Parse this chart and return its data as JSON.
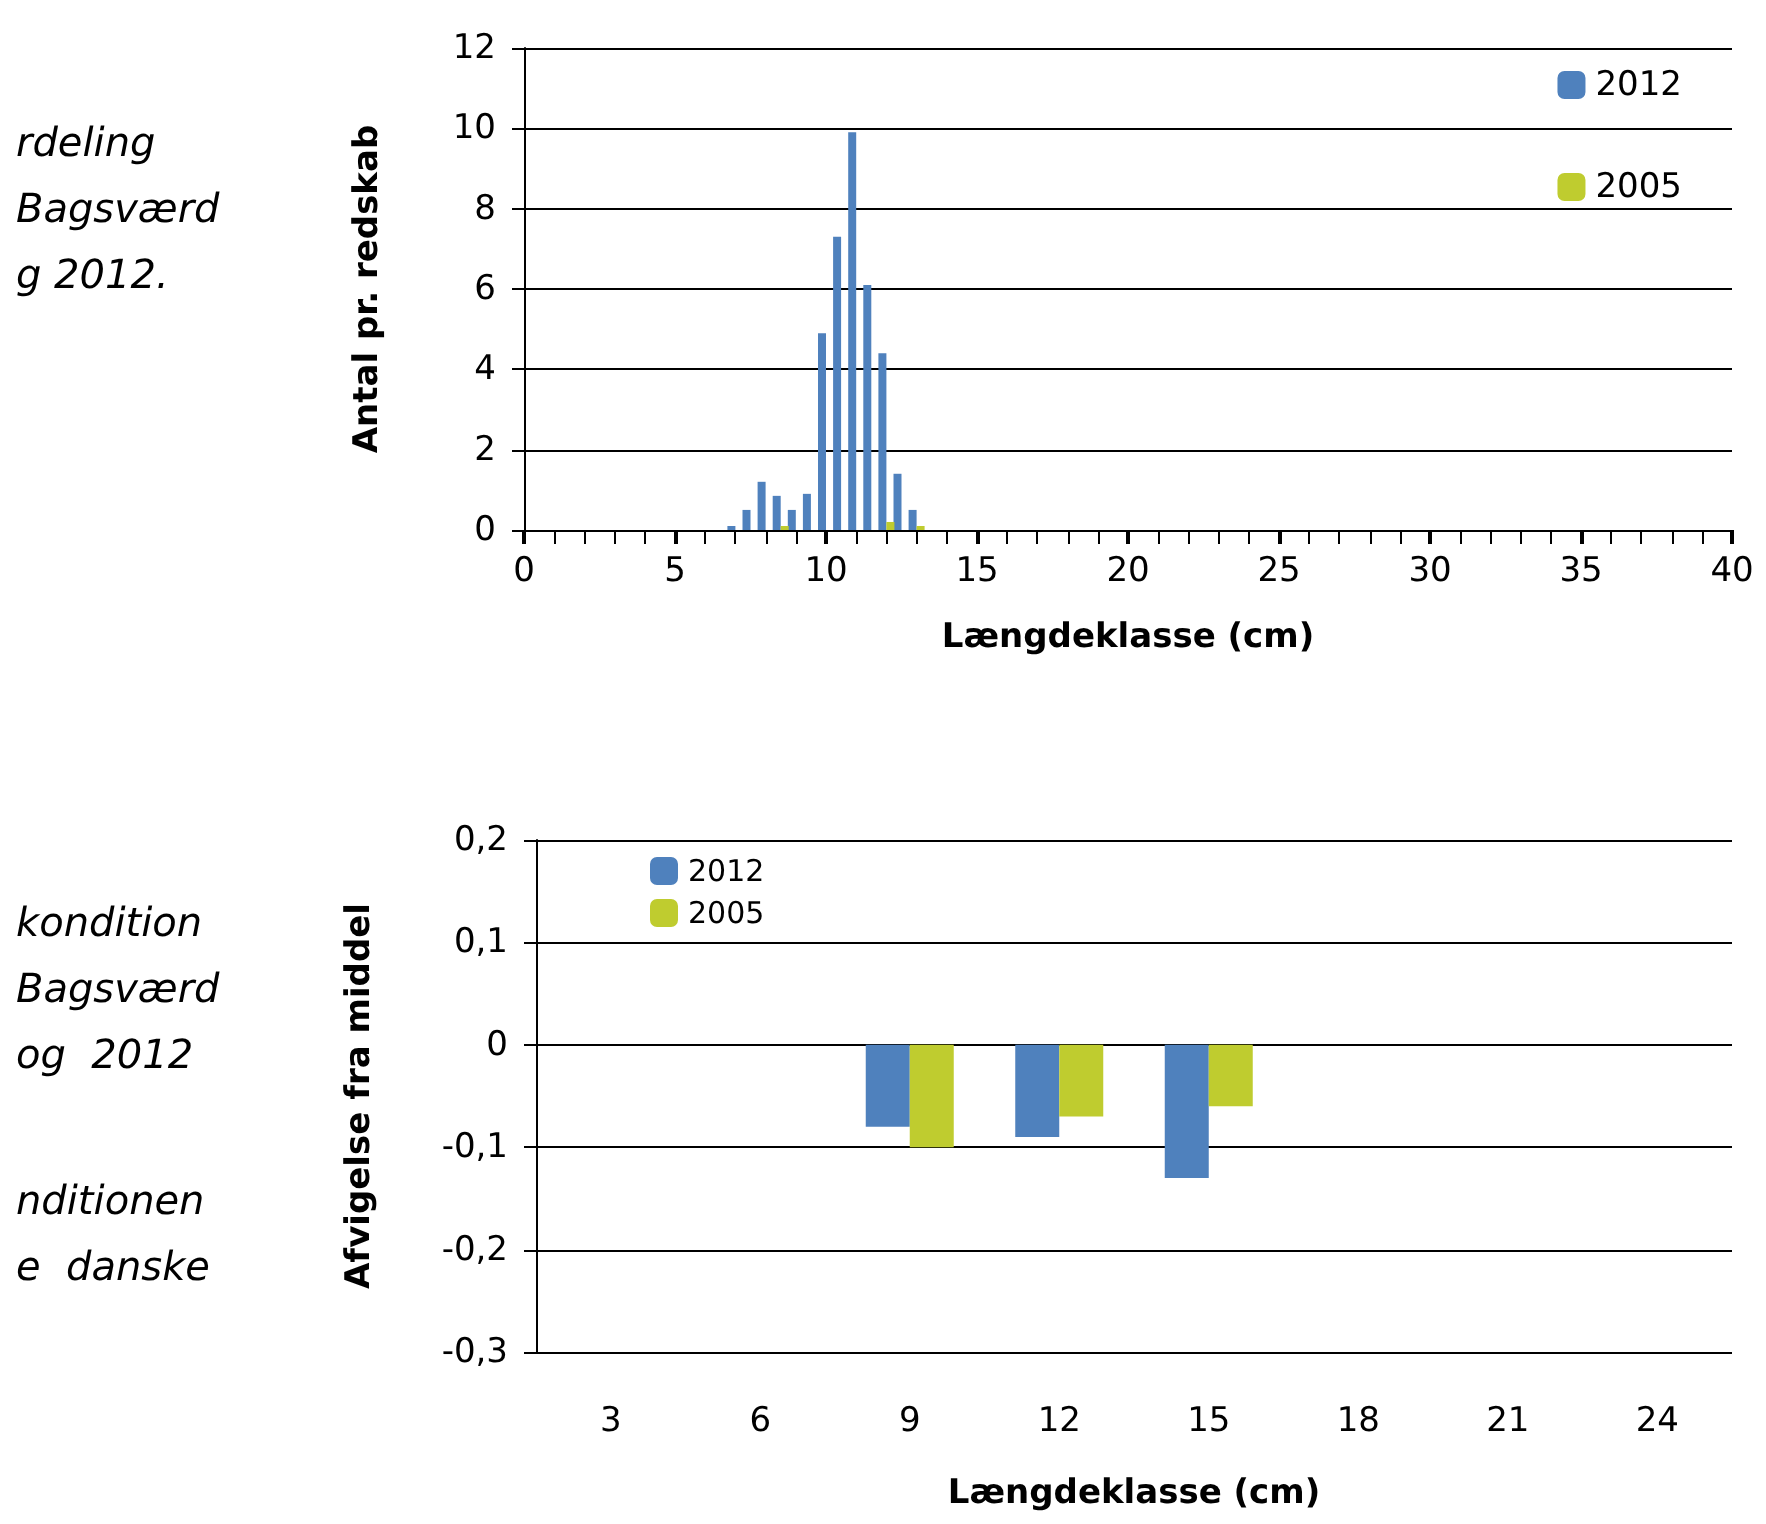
{
  "chart_data": [
    {
      "type": "bar",
      "xlabel": "Længdeklasse (cm)",
      "ylabel": "Antal pr. redskab",
      "x": [
        7,
        7.5,
        8,
        8.5,
        9,
        9.5,
        10,
        10.5,
        11,
        11.5,
        12,
        12.5,
        13
      ],
      "series": [
        {
          "name": "2012",
          "color": "#4f81bd",
          "values": [
            0.1,
            0.5,
            1.2,
            0.85,
            0.5,
            0.9,
            4.9,
            7.3,
            9.9,
            6.1,
            4.4,
            1.4,
            0.5
          ]
        },
        {
          "name": "2005",
          "color": "#bfcc2f",
          "values": [
            null,
            null,
            null,
            0.1,
            null,
            null,
            null,
            null,
            null,
            null,
            0.2,
            null,
            0.1
          ]
        }
      ],
      "xlim": [
        0,
        40
      ],
      "xticks": [
        0,
        5,
        10,
        15,
        20,
        25,
        30,
        35,
        40
      ],
      "ylim": [
        0,
        12
      ],
      "yticks": [
        0,
        2,
        4,
        6,
        8,
        10,
        12
      ],
      "grid": "y",
      "legend": "top right",
      "annotations": [
        "rdeling",
        "Bagsværd",
        "g 2012."
      ]
    },
    {
      "type": "bar",
      "xlabel": "Længdeklasse (cm)",
      "ylabel": "Afvigelse fra middel",
      "categories": [
        "3",
        "6",
        "9",
        "12",
        "15",
        "18",
        "21",
        "24"
      ],
      "series": [
        {
          "name": "2012",
          "color": "#4f81bd",
          "values": [
            null,
            null,
            -0.08,
            -0.09,
            -0.13,
            null,
            null,
            null
          ]
        },
        {
          "name": "2005",
          "color": "#bfcc2f",
          "values": [
            null,
            null,
            -0.1,
            -0.07,
            -0.06,
            null,
            null,
            null
          ]
        }
      ],
      "ylim": [
        -0.3,
        0.2
      ],
      "yticks": [
        {
          "value": -0.3,
          "label": "-0,3"
        },
        {
          "value": -0.2,
          "label": "-0,2"
        },
        {
          "value": -0.1,
          "label": "-0,1"
        },
        {
          "value": 0,
          "label": "0"
        },
        {
          "value": 0.1,
          "label": "0,1"
        },
        {
          "value": 0.2,
          "label": "0,2"
        }
      ],
      "grid": "y",
      "legend": "top left",
      "annotations": [
        "kondition",
        "Bagsværd",
        "og  2012",
        "nditionen",
        "e  danske"
      ]
    }
  ]
}
